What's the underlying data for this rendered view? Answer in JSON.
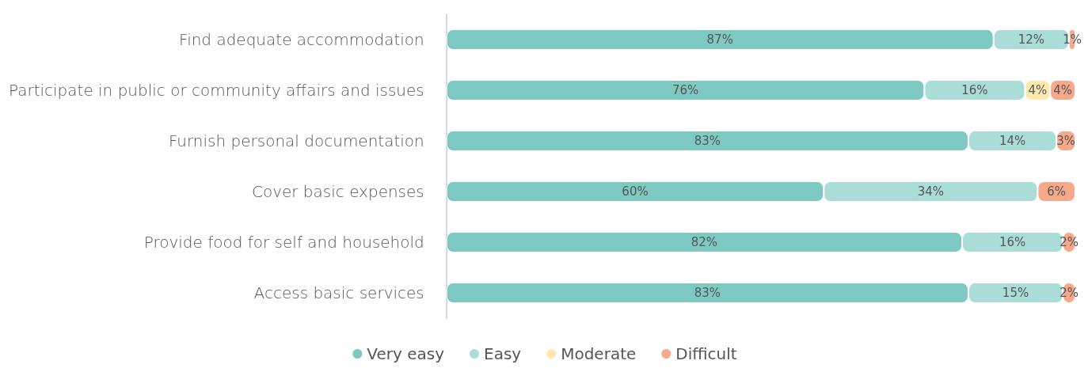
{
  "chart_data": {
    "type": "bar",
    "orientation": "horizontal",
    "stacked": true,
    "categories": [
      "Find adequate accommodation",
      "Participate in public or community affairs and issues",
      "Furnish personal documentation",
      "Cover basic expenses",
      "Provide food for self and household",
      "Access basic services"
    ],
    "xlim": [
      0,
      100
    ],
    "tick_labels": "y",
    "grid": false,
    "legend": "bottom",
    "marker": "circle",
    "series": [
      {
        "name": "Very easy",
        "color": "#7ecac3",
        "values": [
          87,
          76,
          83,
          60,
          82,
          83
        ],
        "value_labels": [
          "87%",
          "76%",
          "83%",
          "60%",
          "82%",
          "83%"
        ]
      },
      {
        "name": "Easy",
        "color": "#aadcd8",
        "values": [
          12,
          16,
          14,
          34,
          16,
          15
        ],
        "value_labels": [
          "12%",
          "16%",
          "14%",
          "34%",
          "16%",
          "15%"
        ]
      },
      {
        "name": "Moderate",
        "color": "#fde8b0",
        "values": [
          null,
          4,
          null,
          null,
          null,
          null
        ],
        "value_labels": [
          null,
          "4%",
          null,
          null,
          null,
          null
        ]
      },
      {
        "name": "Difficult",
        "color": "#f5a98a",
        "values": [
          1,
          4,
          3,
          6,
          2,
          2
        ],
        "value_labels": [
          "1%",
          "4%",
          "3%",
          "6%",
          "2%",
          "2%"
        ]
      }
    ]
  }
}
